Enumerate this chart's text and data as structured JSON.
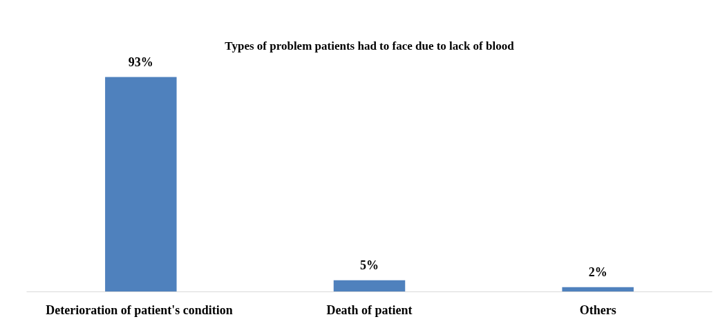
{
  "chart_data": {
    "type": "bar",
    "title": "Types of problem patients had to face due to lack of blood",
    "categories": [
      "Deterioration  of patient's condition",
      "Death of patient",
      "Others"
    ],
    "values": [
      93,
      5,
      2
    ],
    "value_labels": [
      "93%",
      "5%",
      "2%"
    ],
    "color": "#4f81bd"
  }
}
